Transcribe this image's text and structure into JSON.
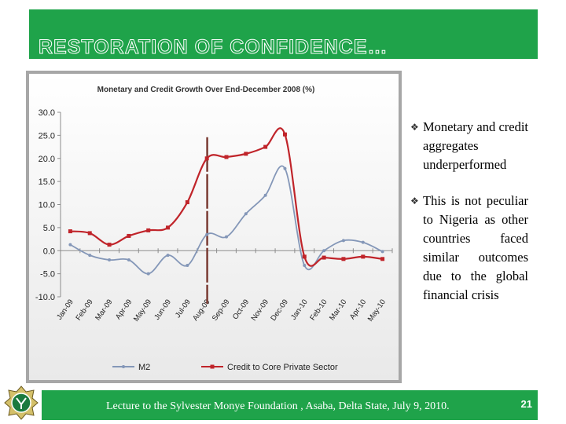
{
  "slide": {
    "title": "RESTORATION OF CONFIDENCE…",
    "bullets": [
      "Monetary and credit aggregates underperformed",
      "This is not peculiar to Nigeria as other countries faced similar outcomes due to the global financial crisis"
    ],
    "footer": "Lecture to the Sylvester Monye Foundation , Asaba, Delta State, July 9, 2010.",
    "page_number": "21",
    "icons": [
      "bullet-icon",
      "logo-emblem"
    ]
  },
  "colors": {
    "title_green": "#1fa34a",
    "m2_series": "#8497b8",
    "credit_series": "#c0242a",
    "marker_line": "#7a3b33"
  },
  "chart_data": {
    "type": "line",
    "title": "Monetary and Credit Growth Over End-December 2008 (%)",
    "categories": [
      "Jan-09",
      "Feb-09",
      "Mar-09",
      "Apr-09",
      "May-09",
      "Jun-09",
      "Jul-09",
      "Aug-09",
      "Sep-09",
      "Oct-09",
      "Nov-09",
      "Dec-09",
      "Jan-10",
      "Feb-10",
      "Mar-10",
      "Apr-10",
      "May-10"
    ],
    "series": [
      {
        "name": "M2",
        "values": [
          1.3,
          -1.0,
          -2.0,
          -2.0,
          -5.0,
          -1.0,
          -3.2,
          3.5,
          3.0,
          8.0,
          12.0,
          17.8,
          -3.2,
          0.0,
          2.2,
          1.8,
          -0.2
        ]
      },
      {
        "name": "Credit to Core Private Sector",
        "values": [
          4.2,
          3.8,
          1.3,
          3.2,
          4.4,
          5.0,
          10.5,
          20.0,
          20.3,
          21.0,
          22.5,
          25.2,
          -1.3,
          -1.5,
          -1.8,
          -1.3,
          -1.8
        ]
      }
    ],
    "yticks": [
      "30.0",
      "25.0",
      "20.0",
      "15.0",
      "10.0",
      "5.0",
      "0.0",
      "-5.0",
      "-10.0"
    ],
    "ylim": [
      -10,
      30
    ],
    "legend_position": "bottom",
    "grid": false
  }
}
